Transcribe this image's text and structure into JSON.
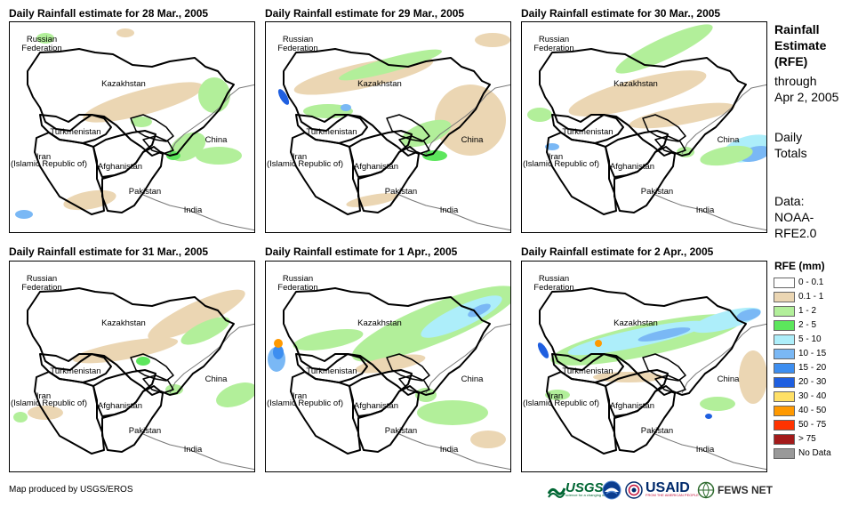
{
  "panels": [
    {
      "title": "Daily Rainfall estimate for 28 Mar., 2005"
    },
    {
      "title": "Daily Rainfall estimate for 29 Mar., 2005"
    },
    {
      "title": "Daily Rainfall estimate for 30 Mar., 2005"
    },
    {
      "title": "Daily Rainfall estimate for 31 Mar., 2005"
    },
    {
      "title": "Daily Rainfall estimate for 1 Apr., 2005"
    },
    {
      "title": "Daily Rainfall estimate for 2 Apr., 2005"
    }
  ],
  "map_labels": {
    "russia_1": "Russian",
    "russia_2": "Federation",
    "kazakhstan": "Kazakhstan",
    "turkmenistan": "Turkmenistan",
    "iran_1": "Iran",
    "iran_2": "(Islamic Republic of)",
    "afghanistan": "Afghanistan",
    "pakistan": "Pakistan",
    "china": "China",
    "india": "India"
  },
  "side": {
    "heading_1": "Rainfall",
    "heading_2": "Estimate",
    "heading_3": "(RFE)",
    "through": "through",
    "date": "Apr 2, 2005",
    "daily": "Daily",
    "totals": "Totals",
    "data_label": "Data:",
    "data_src_1": "NOAA-",
    "data_src_2": "RFE2.0"
  },
  "legend": {
    "title": "RFE (mm)",
    "items": [
      {
        "label": "0 - 0.1",
        "color": "#ffffff"
      },
      {
        "label": "0.1 - 1",
        "color": "#ebd6b3"
      },
      {
        "label": "1 - 2",
        "color": "#b2ef9a"
      },
      {
        "label": "2 - 5",
        "color": "#5ce65c"
      },
      {
        "label": "5 - 10",
        "color": "#adeefa"
      },
      {
        "label": "10 - 15",
        "color": "#7ab8f5"
      },
      {
        "label": "15 - 20",
        "color": "#3d8ef0"
      },
      {
        "label": "20 - 30",
        "color": "#1f5fe0"
      },
      {
        "label": "30 - 40",
        "color": "#ffe066"
      },
      {
        "label": "40 - 50",
        "color": "#ff9900"
      },
      {
        "label": "50 - 75",
        "color": "#ff3300"
      },
      {
        "label": "> 75",
        "color": "#a31a1a"
      },
      {
        "label": "No Data",
        "color": "#999999"
      }
    ]
  },
  "credit": "Map produced by USGS/EROS",
  "logos": {
    "usgs": "USGS",
    "usgs_tag": "science for a changing world",
    "usaid": "USAID",
    "usaid_tag": "FROM THE AMERICAN PEOPLE",
    "fews": "FEWS NET"
  }
}
